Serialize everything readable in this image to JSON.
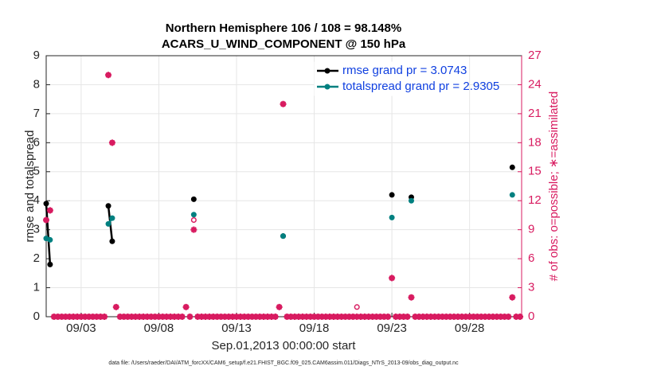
{
  "chart_data": {
    "type": "line",
    "title": "Northern Hemisphere 106 / 108 = 98.148%",
    "subtitle": "ACARS_U_WIND_COMPONENT @ 150 hPa",
    "x_label": "Sep.01,2013 00:00:00 start",
    "y_label": "rmse and totalspread",
    "y2_label": "# of obs: o=possible; ∗=assimilated",
    "footnote": "data file: /Users/raeder/DAI/ATM_forcXX/CAM6_setup/f.e21.FHIST_BGC.f09_025.CAM6assim.011/Diags_NTrS_2013-09/obs_diag_output.nc",
    "grid": true,
    "legend_position": "upper right",
    "legend_text_color": "#1040e0",
    "y2_color": "#d81b60",
    "xlim": [
      0.75,
      31.35
    ],
    "xticks": [
      {
        "value": 3,
        "label": "09/03"
      },
      {
        "value": 8,
        "label": "09/08"
      },
      {
        "value": 13,
        "label": "09/13"
      },
      {
        "value": 18,
        "label": "09/18"
      },
      {
        "value": 23,
        "label": "09/23"
      },
      {
        "value": 28,
        "label": "09/28"
      }
    ],
    "ylim": [
      0,
      9
    ],
    "yticks": [
      0,
      1,
      2,
      3,
      4,
      5,
      6,
      7,
      8,
      9
    ],
    "y2lim": [
      0,
      27
    ],
    "y2ticks": [
      0,
      3,
      6,
      9,
      12,
      15,
      18,
      21,
      24,
      27
    ],
    "x": [
      0.75,
      1,
      1.25,
      1.5,
      1.75,
      2,
      2.25,
      2.5,
      2.75,
      3,
      3.25,
      3.5,
      3.75,
      4,
      4.25,
      4.5,
      4.75,
      5,
      5.25,
      5.5,
      5.75,
      6,
      6.25,
      6.5,
      6.75,
      7,
      7.25,
      7.5,
      7.75,
      8,
      8.25,
      8.5,
      8.75,
      9,
      9.25,
      9.5,
      9.75,
      10,
      10.25,
      10.5,
      10.75,
      11,
      11.25,
      11.5,
      11.75,
      12,
      12.25,
      12.5,
      12.75,
      13,
      13.25,
      13.5,
      13.75,
      14,
      14.25,
      14.5,
      14.75,
      15,
      15.25,
      15.5,
      15.75,
      16,
      16.25,
      16.5,
      16.75,
      17,
      17.25,
      17.5,
      17.75,
      18,
      18.25,
      18.5,
      18.75,
      19,
      19.25,
      19.5,
      19.75,
      20,
      20.25,
      20.5,
      20.75,
      21,
      21.25,
      21.5,
      21.75,
      22,
      22.25,
      22.5,
      22.75,
      23,
      23.25,
      23.5,
      23.75,
      24,
      24.25,
      24.5,
      24.75,
      25,
      25.25,
      25.5,
      25.75,
      26,
      26.25,
      26.5,
      26.75,
      27,
      27.25,
      27.5,
      27.75,
      28,
      28.25,
      28.5,
      28.75,
      29,
      29.25,
      29.5,
      29.75,
      30,
      30.25,
      30.5,
      30.75,
      31,
      31.25
    ],
    "series": [
      {
        "name": "rmse grand pr = 3.0743",
        "color": "#000000",
        "style": "line",
        "values": [
          3.9,
          1.8,
          null,
          null,
          null,
          null,
          null,
          null,
          null,
          null,
          null,
          null,
          null,
          null,
          null,
          null,
          3.82,
          2.6,
          null,
          null,
          null,
          null,
          null,
          null,
          null,
          null,
          null,
          null,
          null,
          null,
          null,
          null,
          null,
          null,
          null,
          null,
          null,
          null,
          4.05,
          null,
          null,
          null,
          null,
          null,
          null,
          null,
          null,
          null,
          null,
          null,
          null,
          null,
          null,
          null,
          null,
          null,
          null,
          null,
          null,
          null,
          null,
          2.78,
          null,
          null,
          null,
          null,
          null,
          null,
          null,
          null,
          null,
          null,
          null,
          null,
          null,
          null,
          null,
          null,
          null,
          null,
          null,
          null,
          null,
          null,
          null,
          null,
          null,
          null,
          null,
          4.2,
          null,
          null,
          null,
          null,
          4.12,
          null,
          null,
          null,
          null,
          null,
          null,
          null,
          null,
          null,
          null,
          null,
          null,
          null,
          null,
          null,
          null,
          null,
          null,
          null,
          null,
          null,
          null,
          null,
          null,
          null,
          5.15,
          null,
          null
        ]
      },
      {
        "name": "totalspread grand pr = 2.9305",
        "color": "#008080",
        "style": "line",
        "values": [
          2.7,
          2.65,
          null,
          null,
          null,
          null,
          null,
          null,
          null,
          null,
          null,
          null,
          null,
          null,
          null,
          null,
          3.2,
          3.4,
          null,
          null,
          null,
          null,
          null,
          null,
          null,
          null,
          null,
          null,
          null,
          null,
          null,
          null,
          null,
          null,
          null,
          null,
          null,
          null,
          3.52,
          null,
          null,
          null,
          null,
          null,
          null,
          null,
          null,
          null,
          null,
          null,
          null,
          null,
          null,
          null,
          null,
          null,
          null,
          null,
          null,
          null,
          null,
          2.78,
          null,
          null,
          null,
          null,
          null,
          null,
          null,
          null,
          null,
          null,
          null,
          null,
          null,
          null,
          null,
          null,
          null,
          null,
          null,
          null,
          null,
          null,
          null,
          null,
          null,
          null,
          null,
          3.42,
          null,
          null,
          null,
          null,
          4.0,
          null,
          null,
          null,
          null,
          null,
          null,
          null,
          null,
          null,
          null,
          null,
          null,
          null,
          null,
          null,
          null,
          null,
          null,
          null,
          null,
          null,
          null,
          null,
          null,
          null,
          4.2,
          null,
          null
        ]
      },
      {
        "axis": "y2",
        "color": "#d81b60",
        "style": "circle",
        "values": [
          10,
          11,
          0,
          0,
          0,
          0,
          0,
          0,
          0,
          0,
          0,
          0,
          0,
          0,
          0,
          0,
          25,
          18,
          1,
          0,
          0,
          0,
          0,
          0,
          0,
          0,
          0,
          0,
          0,
          0,
          0,
          0,
          0,
          0,
          0,
          0,
          1,
          0,
          10,
          0,
          0,
          0,
          0,
          0,
          0,
          0,
          0,
          0,
          0,
          0,
          0,
          0,
          0,
          0,
          0,
          0,
          0,
          0,
          0,
          0,
          1,
          22,
          0,
          0,
          0,
          0,
          0,
          0,
          0,
          0,
          0,
          0,
          0,
          0,
          0,
          0,
          0,
          0,
          0,
          0,
          1,
          0,
          0,
          0,
          0,
          0,
          0,
          0,
          0,
          4,
          0,
          0,
          0,
          0,
          2,
          0,
          0,
          0,
          0,
          0,
          0,
          0,
          0,
          0,
          0,
          0,
          0,
          0,
          0,
          0,
          0,
          0,
          0,
          0,
          0,
          0,
          0,
          0,
          0,
          0,
          2,
          0,
          0
        ]
      },
      {
        "axis": "y2",
        "color": "#d81b60",
        "style": "star",
        "values": [
          10,
          11,
          0,
          0,
          0,
          0,
          0,
          0,
          0,
          0,
          0,
          0,
          0,
          0,
          0,
          0,
          25,
          18,
          1,
          0,
          0,
          0,
          0,
          0,
          0,
          0,
          0,
          0,
          0,
          0,
          0,
          0,
          0,
          0,
          0,
          0,
          1,
          0,
          9,
          0,
          0,
          0,
          0,
          0,
          0,
          0,
          0,
          0,
          0,
          0,
          0,
          0,
          0,
          0,
          0,
          0,
          0,
          0,
          0,
          0,
          1,
          22,
          0,
          0,
          0,
          0,
          0,
          0,
          0,
          0,
          0,
          0,
          0,
          0,
          0,
          0,
          0,
          0,
          0,
          0,
          0,
          0,
          0,
          0,
          0,
          0,
          0,
          0,
          0,
          4,
          0,
          0,
          0,
          0,
          2,
          0,
          0,
          0,
          0,
          0,
          0,
          0,
          0,
          0,
          0,
          0,
          0,
          0,
          0,
          0,
          0,
          0,
          0,
          0,
          0,
          0,
          0,
          0,
          0,
          0,
          2,
          0,
          0
        ]
      }
    ]
  }
}
